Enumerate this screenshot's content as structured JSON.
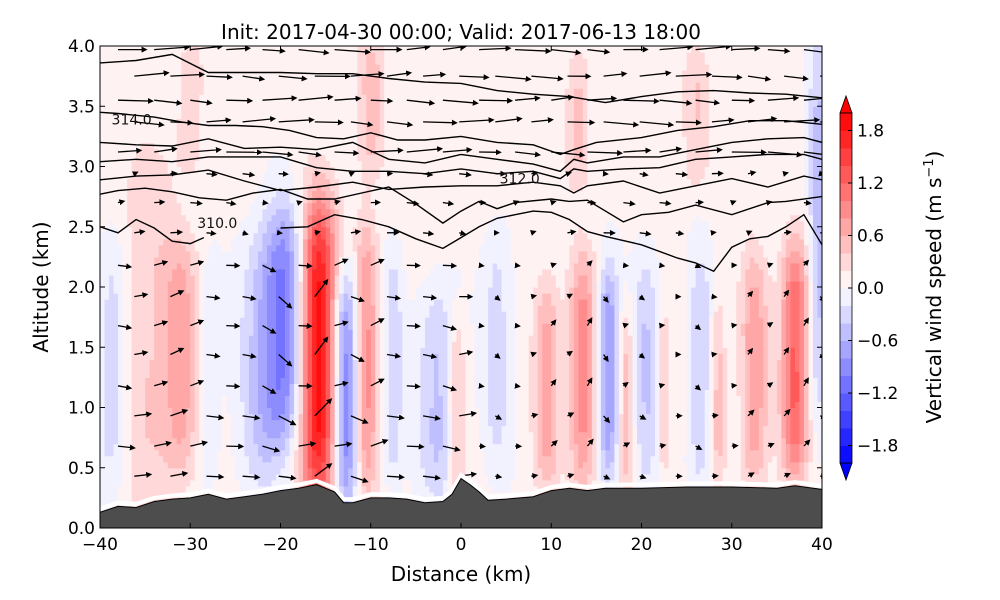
{
  "chart_data": {
    "type": "contourf",
    "title": "Init: 2017-04-30 00:00; Valid: 2017-06-13 18:00",
    "xlabel": "Distance (km)",
    "ylabel": "Altitude (km)",
    "xlim": [
      -40,
      40
    ],
    "ylim": [
      0.0,
      4.0
    ],
    "xticks": [
      -40,
      -30,
      -20,
      -10,
      0,
      10,
      20,
      30,
      40
    ],
    "xtick_labels": [
      "−40",
      "−30",
      "−20",
      "−10",
      "0",
      "10",
      "20",
      "30",
      "40"
    ],
    "yticks": [
      0.0,
      0.5,
      1.0,
      1.5,
      2.0,
      2.5,
      3.0,
      3.5,
      4.0
    ],
    "ytick_labels": [
      "0.0",
      "0.5",
      "1.0",
      "1.5",
      "2.0",
      "2.5",
      "3.0",
      "3.5",
      "4.0"
    ],
    "colorbar": {
      "label": "Vertical wind speed (m s⁻¹)",
      "label_main": "Vertical wind speed (m s",
      "label_sup": "−1",
      "label_close": ")",
      "vmin": -2.0,
      "vmax": 2.0,
      "levels_step": 0.2,
      "extend": "both",
      "ticks": [
        1.8,
        1.2,
        0.6,
        0.0,
        -0.6,
        -1.2,
        -1.8
      ],
      "tick_labels": [
        "1.8",
        "1.2",
        "0.6",
        "0.0",
        "−0.6",
        "−1.2",
        "−1.8"
      ],
      "colormap": "bwr",
      "low_color": "#0000ff",
      "mid_color": "#ffffff",
      "high_color": "#ff0000"
    },
    "w_field_columns": [
      {
        "x": -38.5,
        "width": 1.8,
        "z_center": 1.4,
        "z_half": 1.1,
        "w": -0.45
      },
      {
        "x": -35.0,
        "width": 3.5,
        "z_center": 1.6,
        "z_half": 1.6,
        "w": 0.35
      },
      {
        "x": -31.0,
        "width": 2.0,
        "z_center": 1.4,
        "z_half": 1.0,
        "w": 0.6
      },
      {
        "x": -28.0,
        "width": 1.2,
        "z_center": 1.3,
        "z_half": 0.9,
        "w": -0.3
      },
      {
        "x": -22.0,
        "width": 2.5,
        "z_center": 1.4,
        "z_half": 1.1,
        "w": -0.5
      },
      {
        "x": -19.5,
        "width": 2.2,
        "z_center": 1.7,
        "z_half": 1.0,
        "w": -0.95
      },
      {
        "x": -15.8,
        "width": 2.0,
        "z_center": 1.45,
        "z_half": 1.3,
        "w": 1.9
      },
      {
        "x": -12.8,
        "width": 1.4,
        "z_center": 1.15,
        "z_half": 1.0,
        "w": -1.1
      },
      {
        "x": -10.5,
        "width": 1.3,
        "z_center": 1.4,
        "z_half": 1.2,
        "w": 0.8
      },
      {
        "x": -7.5,
        "width": 1.0,
        "z_center": 1.3,
        "z_half": 1.0,
        "w": -0.4
      },
      {
        "x": -2.5,
        "width": 2.2,
        "z_center": 1.1,
        "z_half": 0.9,
        "w": -0.5
      },
      {
        "x": -0.5,
        "width": 1.0,
        "z_center": 1.0,
        "z_half": 0.8,
        "w": 0.5
      },
      {
        "x": 4.0,
        "width": 1.5,
        "z_center": 1.5,
        "z_half": 1.0,
        "w": -0.35
      },
      {
        "x": 9.5,
        "width": 1.4,
        "z_center": 1.2,
        "z_half": 0.9,
        "w": 0.65
      },
      {
        "x": 13.5,
        "width": 1.5,
        "z_center": 1.3,
        "z_half": 1.0,
        "w": 0.85
      },
      {
        "x": 16.3,
        "width": 1.1,
        "z_center": 1.3,
        "z_half": 0.9,
        "w": -0.9
      },
      {
        "x": 18.3,
        "width": 0.8,
        "z_center": 1.0,
        "z_half": 0.8,
        "w": 0.45
      },
      {
        "x": 20.5,
        "width": 1.3,
        "z_center": 1.3,
        "z_half": 1.0,
        "w": -0.45
      },
      {
        "x": 22.5,
        "width": 0.7,
        "z_center": 1.1,
        "z_half": 0.7,
        "w": 0.4
      },
      {
        "x": 26.5,
        "width": 1.2,
        "z_center": 1.3,
        "z_half": 1.0,
        "w": -0.45
      },
      {
        "x": 28.5,
        "width": 0.8,
        "z_center": 1.1,
        "z_half": 0.8,
        "w": 0.45
      },
      {
        "x": 32.5,
        "width": 1.5,
        "z_center": 1.3,
        "z_half": 1.0,
        "w": 0.7
      },
      {
        "x": 37.0,
        "width": 1.5,
        "z_center": 1.4,
        "z_half": 1.0,
        "w": 1.2
      },
      {
        "x": 39.5,
        "width": 1.0,
        "z_center": 2.5,
        "z_half": 1.6,
        "w": -0.55
      },
      {
        "x": -30.0,
        "width": 1.5,
        "z_center": 3.5,
        "z_half": 0.6,
        "w": 0.3
      },
      {
        "x": -10.0,
        "width": 1.5,
        "z_center": 3.5,
        "z_half": 0.6,
        "w": 0.45
      },
      {
        "x": 13.0,
        "width": 1.3,
        "z_center": 3.4,
        "z_half": 0.6,
        "w": 0.4
      },
      {
        "x": 26.0,
        "width": 1.5,
        "z_center": 3.4,
        "z_half": 0.6,
        "w": 0.35
      }
    ],
    "terrain": {
      "x": [
        -40,
        -38,
        -36,
        -34,
        -32,
        -30,
        -28,
        -26,
        -24,
        -22,
        -20,
        -18,
        -16,
        -14,
        -13,
        -12,
        -10,
        -8,
        -6,
        -4,
        -2,
        -1,
        0,
        1,
        2,
        3,
        5,
        8,
        10,
        12,
        14,
        16,
        20,
        25,
        30,
        35,
        37,
        40
      ],
      "z": [
        0.13,
        0.18,
        0.17,
        0.22,
        0.24,
        0.25,
        0.28,
        0.24,
        0.26,
        0.28,
        0.31,
        0.33,
        0.36,
        0.3,
        0.21,
        0.21,
        0.25,
        0.25,
        0.24,
        0.21,
        0.22,
        0.28,
        0.41,
        0.36,
        0.3,
        0.23,
        0.24,
        0.26,
        0.31,
        0.33,
        0.31,
        0.33,
        0.33,
        0.34,
        0.34,
        0.33,
        0.35,
        0.32
      ],
      "color": "#4d4d4d"
    },
    "isentropes": [
      {
        "label": "",
        "x": [
          -40,
          -36,
          -32,
          -28,
          -24,
          -20,
          -16,
          -12,
          -8,
          -4,
          0,
          4,
          8,
          12,
          16,
          20,
          24,
          28,
          32,
          36,
          40
        ],
        "z": [
          3.86,
          3.88,
          3.93,
          3.78,
          3.78,
          3.78,
          3.77,
          3.77,
          3.73,
          3.7,
          3.69,
          3.63,
          3.6,
          3.58,
          3.53,
          3.58,
          3.62,
          3.63,
          3.61,
          3.6,
          3.57
        ]
      },
      {
        "label": "314.0",
        "label_x": -36.5,
        "label_z": 3.39,
        "x": [
          -40,
          -38,
          -34,
          -31,
          -28,
          -25,
          -22,
          -19,
          -16,
          -13,
          -10,
          -7,
          -4,
          0,
          4,
          8,
          11,
          12.5,
          15,
          20,
          24,
          28,
          32,
          36,
          40
        ],
        "z": [
          3.45,
          3.44,
          3.41,
          3.37,
          3.34,
          3.34,
          3.33,
          3.3,
          3.24,
          3.23,
          3.28,
          3.22,
          3.22,
          3.25,
          3.2,
          3.18,
          3.1,
          3.14,
          3.2,
          3.24,
          3.3,
          3.33,
          3.38,
          3.38,
          3.35
        ]
      },
      {
        "label": "",
        "x": [
          -40,
          -36,
          -32,
          -28,
          -24,
          -20,
          -16,
          -12,
          -8,
          -4,
          0,
          4,
          8,
          11,
          12.5,
          14,
          18,
          22,
          26,
          30,
          34,
          38,
          40
        ],
        "z": [
          3.2,
          3.18,
          3.17,
          3.23,
          3.15,
          3.16,
          3.14,
          3.2,
          3.06,
          3.03,
          3.1,
          3.06,
          3.02,
          2.96,
          3.06,
          3.03,
          3.08,
          3.08,
          3.14,
          3.2,
          3.23,
          3.24,
          3.2
        ]
      },
      {
        "label": "",
        "x": [
          -40,
          -36,
          -32,
          -28,
          -24,
          -20,
          -16,
          -12,
          -8,
          -4,
          0,
          4,
          8,
          11,
          12.5,
          14,
          18,
          22,
          26,
          30,
          34,
          38,
          40
        ],
        "z": [
          3.04,
          3.06,
          3.04,
          3.08,
          3.08,
          3.08,
          2.99,
          2.96,
          2.96,
          2.94,
          2.98,
          2.94,
          2.96,
          2.9,
          2.98,
          2.96,
          2.98,
          2.99,
          3.06,
          3.08,
          3.1,
          3.1,
          3.06
        ]
      },
      {
        "label": "312.0",
        "label_x": 6.5,
        "label_z": 2.9,
        "x": [
          -40,
          -36,
          -32,
          -28,
          -24,
          -20,
          -16,
          -12,
          -8,
          -4,
          0,
          4,
          8,
          11,
          12.5,
          14,
          18,
          22,
          26,
          30,
          34,
          38,
          40
        ],
        "z": [
          2.89,
          2.92,
          2.93,
          2.97,
          2.88,
          2.8,
          2.83,
          2.87,
          2.81,
          2.83,
          2.84,
          2.84,
          2.87,
          2.84,
          2.78,
          2.84,
          2.88,
          2.78,
          2.84,
          2.9,
          2.83,
          2.92,
          2.89
        ]
      },
      {
        "label": "",
        "x": [
          -40,
          -38,
          -35,
          -32,
          -29,
          -26,
          -23,
          -20,
          -17,
          -14,
          -11,
          -8,
          -5,
          -2,
          0,
          2,
          4,
          6,
          10,
          12,
          14,
          18,
          20,
          23,
          26,
          30,
          34,
          36,
          40
        ],
        "z": [
          2.77,
          2.8,
          2.82,
          2.79,
          2.74,
          2.72,
          2.78,
          2.81,
          2.73,
          2.73,
          2.78,
          2.83,
          2.69,
          2.53,
          2.63,
          2.71,
          2.65,
          2.7,
          2.73,
          2.71,
          2.72,
          2.54,
          2.6,
          2.62,
          2.68,
          2.6,
          2.7,
          2.71,
          2.75
        ]
      },
      {
        "label": "310.0",
        "label_x": -27.0,
        "label_z": 2.53,
        "x": [
          -40,
          -38,
          -36,
          -34,
          -32,
          -30,
          -28.5
        ],
        "z": [
          2.5,
          2.45,
          2.56,
          2.49,
          2.38,
          2.36,
          2.41
        ],
        "x2": [
          -20,
          -17,
          -14,
          -11,
          -8,
          -5,
          -2,
          0,
          2,
          4,
          6,
          8,
          10,
          12,
          14,
          16,
          20,
          24,
          26,
          28,
          30,
          32,
          34,
          36,
          38,
          40
        ],
        "z2": [
          2.49,
          2.5,
          2.6,
          2.56,
          2.5,
          2.4,
          2.32,
          2.41,
          2.5,
          2.57,
          2.6,
          2.63,
          2.62,
          2.56,
          2.46,
          2.42,
          2.35,
          2.24,
          2.2,
          2.13,
          2.33,
          2.4,
          2.42,
          2.5,
          2.6,
          2.35
        ]
      }
    ],
    "wind_vectors": {
      "unit": "arrow length proportional to speed (u, w components)",
      "rows_z": [
        3.97,
        3.75,
        3.55,
        3.37,
        3.12,
        2.94,
        2.7,
        2.45,
        2.18,
        1.92,
        1.68,
        1.44,
        1.18,
        0.93,
        0.68,
        0.43
      ],
      "cols_x": [
        -38,
        -34,
        -30,
        -26,
        -22,
        -18,
        -14,
        -10,
        -6,
        -2,
        2,
        6,
        10,
        14,
        18,
        22,
        26,
        30,
        34,
        38
      ]
    }
  }
}
